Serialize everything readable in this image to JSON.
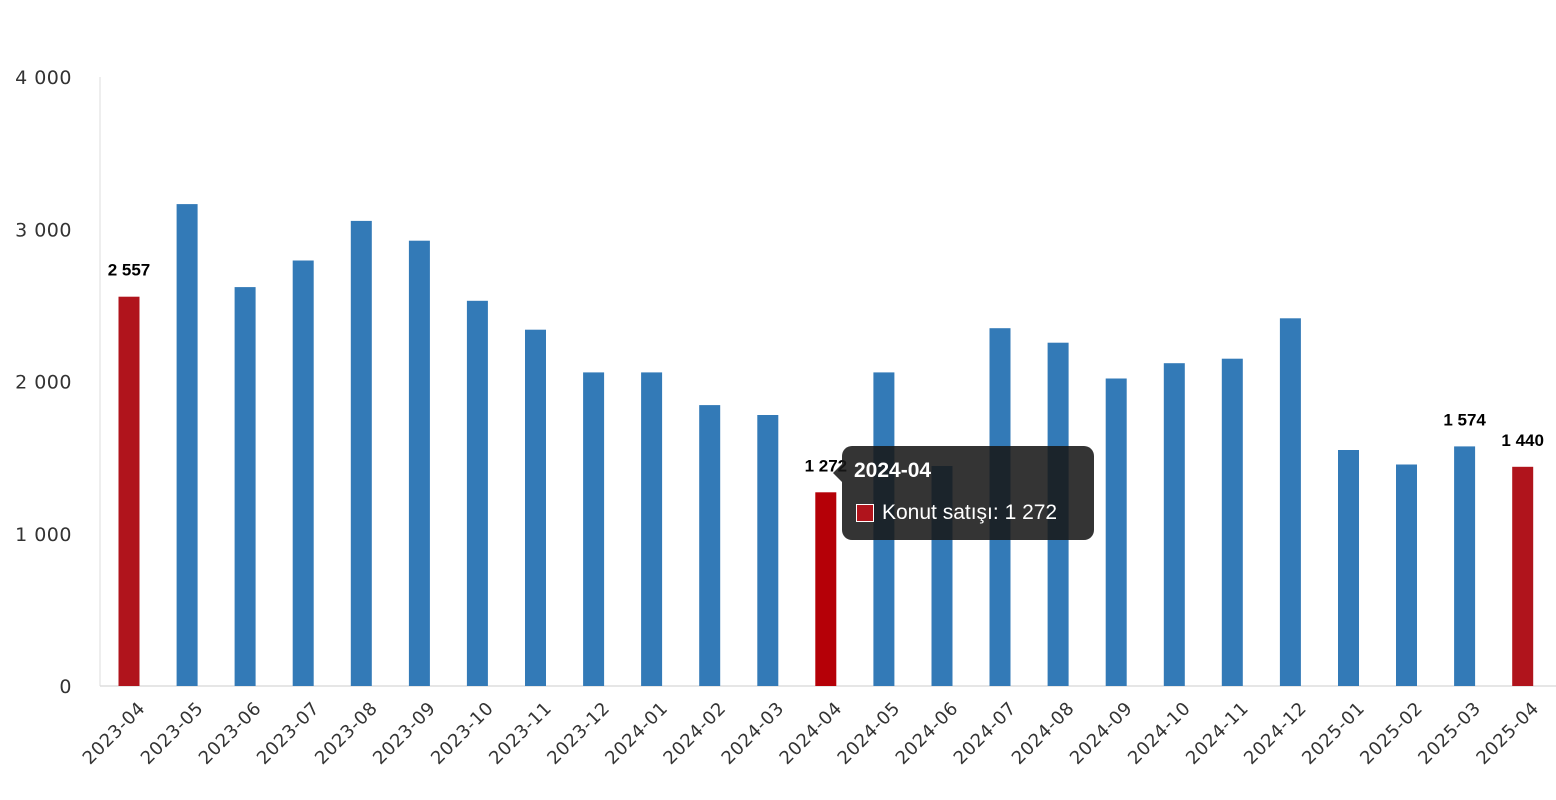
{
  "chart_data": {
    "type": "bar",
    "categories": [
      "2023-04",
      "2023-05",
      "2023-06",
      "2023-07",
      "2023-08",
      "2023-09",
      "2023-10",
      "2023-11",
      "2023-12",
      "2024-01",
      "2024-02",
      "2024-03",
      "2024-04",
      "2024-05",
      "2024-06",
      "2024-07",
      "2024-08",
      "2024-09",
      "2024-10",
      "2024-11",
      "2024-12",
      "2025-01",
      "2025-02",
      "2025-03",
      "2025-04"
    ],
    "series": [
      {
        "name": "Konut satışı",
        "values": [
          2557,
          3165,
          2620,
          2795,
          3055,
          2925,
          2530,
          2340,
          2060,
          2060,
          1845,
          1780,
          1272,
          2060,
          1445,
          2350,
          2255,
          2020,
          2120,
          2150,
          2415,
          1550,
          1455,
          1574,
          1440
        ]
      }
    ],
    "highlighted": [
      "2023-04",
      "2024-04",
      "2025-04"
    ],
    "data_labels": [
      {
        "category": "2023-04",
        "text": "2 557"
      },
      {
        "category": "2024-04",
        "text": "1 272"
      },
      {
        "category": "2025-03",
        "text": "1 574"
      },
      {
        "category": "2025-04",
        "text": "1 440"
      }
    ],
    "ylim": [
      0,
      4000
    ],
    "yticks": [
      {
        "value": 0,
        "label": "0"
      },
      {
        "value": 1000,
        "label": "1 000"
      },
      {
        "value": 2000,
        "label": "2 000"
      },
      {
        "value": 3000,
        "label": "3 000"
      },
      {
        "value": 4000,
        "label": "4 000"
      }
    ],
    "grid": false,
    "title": "",
    "xlabel": "",
    "ylabel": "",
    "colors": {
      "bar": "#337ab7",
      "highlight": "#b0141c",
      "hover": "#b50007"
    }
  },
  "tooltip": {
    "title": "2024-04",
    "series_label": "Konut satışı",
    "value_text": "1 272",
    "line": "Konut satışı: 1 272",
    "swatch_color": "#b0141c"
  }
}
